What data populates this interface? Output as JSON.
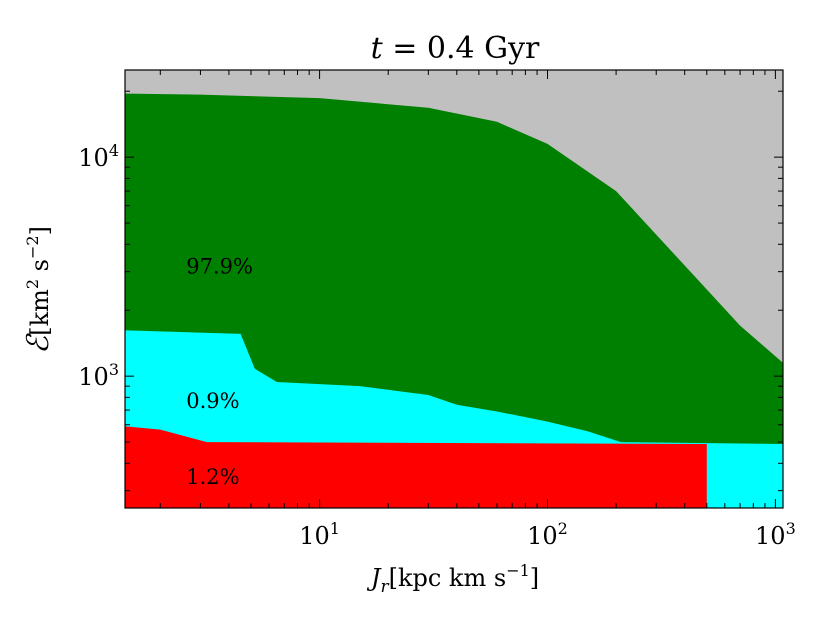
{
  "chart_data": {
    "type": "area",
    "title": {
      "var": "t",
      "eq": " = 0.4 Gyr"
    },
    "xlabel": {
      "var": "J",
      "sub": "r",
      "unit": "[kpc km s",
      "exp": "−1",
      "close": "]"
    },
    "ylabel": {
      "var": "ℰ",
      "unit": "[km",
      "exp1": "2",
      "mid": " s",
      "exp2": "−2",
      "close": "]"
    },
    "xscale": "log",
    "yscale": "log",
    "xlim": [
      1.4,
      1080
    ],
    "ylim": [
      250,
      25000
    ],
    "xticks": [
      {
        "value": 10,
        "base": "10",
        "exp": "1"
      },
      {
        "value": 100,
        "base": "10",
        "exp": "2"
      },
      {
        "value": 1000,
        "base": "10",
        "exp": "3"
      }
    ],
    "yticks": [
      {
        "value": 1000,
        "base": "10",
        "exp": "3"
      },
      {
        "value": 10000,
        "base": "10",
        "exp": "4"
      }
    ],
    "background_region": {
      "name": "",
      "color": "#c0c0c0"
    },
    "regions": [
      {
        "name": "green",
        "color": "#008000",
        "label": "97.9%",
        "label_at": [
          2.6,
          3200
        ],
        "boundary": [
          [
            1.4,
            19500
          ],
          [
            3,
            19300
          ],
          [
            10,
            18600
          ],
          [
            30,
            16800
          ],
          [
            60,
            14500
          ],
          [
            100,
            11500
          ],
          [
            200,
            7000
          ],
          [
            400,
            3200
          ],
          [
            700,
            1700
          ],
          [
            1080,
            1150
          ]
        ]
      },
      {
        "name": "cyan",
        "color": "#00ffff",
        "label": "0.9%",
        "label_at": [
          2.6,
          780
        ],
        "boundary": [
          [
            1.4,
            1620
          ],
          [
            4.5,
            1560
          ],
          [
            5.2,
            1080
          ],
          [
            6.5,
            940
          ],
          [
            15,
            900
          ],
          [
            30,
            820
          ],
          [
            40,
            740
          ],
          [
            60,
            690
          ],
          [
            100,
            620
          ],
          [
            150,
            560
          ],
          [
            210,
            500
          ],
          [
            1080,
            490
          ]
        ]
      },
      {
        "name": "red",
        "color": "#ff0000",
        "label": "1.2%",
        "label_at": [
          2.6,
          350
        ],
        "boundary": [
          [
            1.4,
            590
          ],
          [
            2,
            570
          ],
          [
            3.2,
            500
          ],
          [
            500,
            490
          ]
        ],
        "x_extent": [
          1.4,
          500
        ]
      }
    ],
    "grid": false
  }
}
